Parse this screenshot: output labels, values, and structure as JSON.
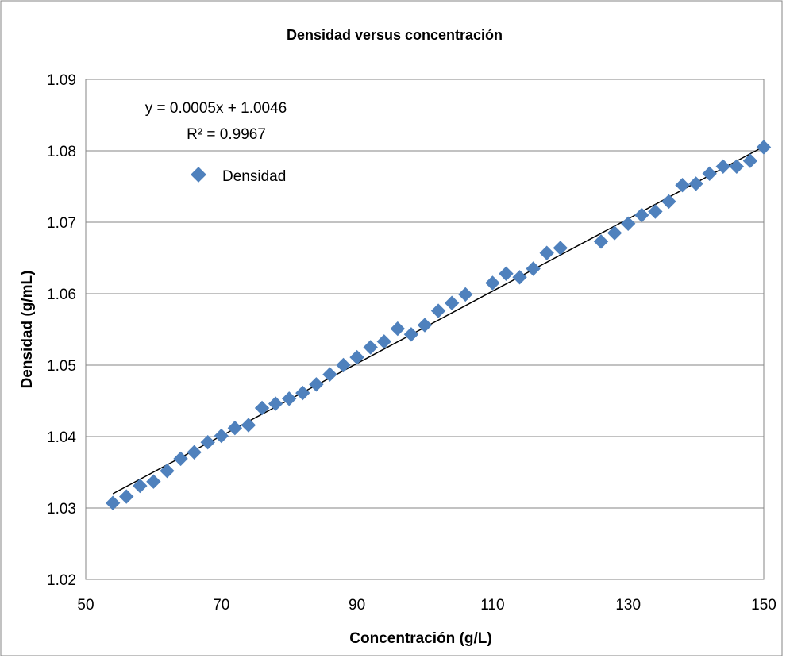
{
  "chart_data": {
    "type": "scatter",
    "title": "Densidad versus concentración",
    "xlabel": "Concentración (g/L)",
    "ylabel": "Densidad (g/mL)",
    "xlim": [
      50,
      150
    ],
    "ylim": [
      1.02,
      1.09
    ],
    "xticks": [
      50,
      70,
      90,
      110,
      130,
      150
    ],
    "yticks": [
      1.02,
      1.03,
      1.04,
      1.05,
      1.06,
      1.07,
      1.08,
      1.09
    ],
    "grid": "horizontal major",
    "legend_position": "top-left",
    "series": [
      {
        "name": "Densidad",
        "color": "#4f81bd",
        "marker": "diamond",
        "x": [
          54,
          56,
          58,
          60,
          62,
          64,
          66,
          68,
          70,
          72,
          74,
          76,
          78,
          80,
          82,
          84,
          86,
          88,
          90,
          92,
          94,
          96,
          98,
          100,
          102,
          104,
          106,
          110,
          112,
          114,
          116,
          118,
          120,
          126,
          128,
          130,
          132,
          134,
          136,
          138,
          140,
          142,
          144,
          146,
          148,
          150
        ],
        "y": [
          1.0307,
          1.0316,
          1.0331,
          1.0337,
          1.0352,
          1.0369,
          1.0378,
          1.0392,
          1.0401,
          1.0412,
          1.0416,
          1.044,
          1.0446,
          1.0453,
          1.0461,
          1.0473,
          1.0487,
          1.05,
          1.0511,
          1.0525,
          1.0533,
          1.0551,
          1.0543,
          1.0556,
          1.0576,
          1.0587,
          1.0599,
          1.0615,
          1.0628,
          1.0623,
          1.0635,
          1.0657,
          1.0664,
          1.0673,
          1.0685,
          1.0698,
          1.071,
          1.0715,
          1.0729,
          1.0752,
          1.0754,
          1.0768,
          1.0778,
          1.0778,
          1.0786,
          1.0805
        ]
      }
    ],
    "trendline": {
      "type": "linear",
      "equation": "y = 0.0005x + 1.0046",
      "r_squared": "R² = 0.9967",
      "x": [
        54,
        150
      ],
      "y": [
        1.032,
        1.0806
      ],
      "color": "#000000"
    }
  }
}
